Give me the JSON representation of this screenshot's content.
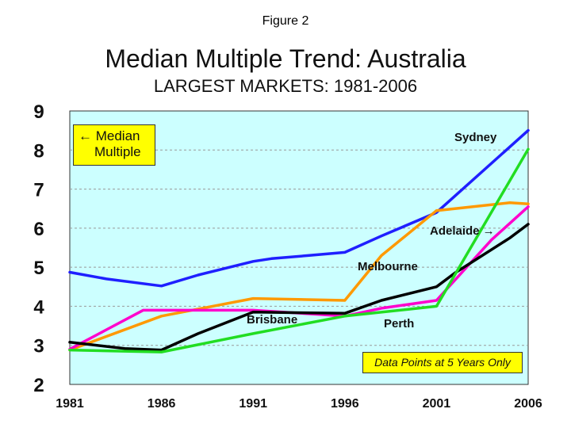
{
  "figure_caption": "Figure 2",
  "chart_data": {
    "type": "line",
    "title": "Median Multiple Trend: Australia",
    "subtitle": "LARGEST MARKETS: 1981-2006",
    "x": [
      1981,
      1986,
      1991,
      1996,
      2001,
      2006
    ],
    "x_ticks": [
      "1981",
      "1986",
      "1991",
      "1996",
      "2001",
      "2006"
    ],
    "y_ticks": [
      "2",
      "3",
      "4",
      "5",
      "6",
      "7",
      "8",
      "9"
    ],
    "xlim": [
      1981,
      2006
    ],
    "ylim": [
      2,
      9
    ],
    "grid": true,
    "plot_background": "#ccffff",
    "legend_text": [
      "← Median",
      "Multiple"
    ],
    "note": "Data Points at 5 Years Only",
    "series": [
      {
        "name": "Sydney",
        "label": "Sydney",
        "color": "#1f1fff",
        "points": [
          [
            1981,
            4.87
          ],
          [
            1983,
            4.7
          ],
          [
            1986,
            4.52
          ],
          [
            1988,
            4.8
          ],
          [
            1991,
            5.15
          ],
          [
            1992,
            5.22
          ],
          [
            1994,
            5.3
          ],
          [
            1996,
            5.38
          ],
          [
            1998,
            5.8
          ],
          [
            2000,
            6.2
          ],
          [
            2001,
            6.4
          ],
          [
            2006,
            8.5
          ]
        ]
      },
      {
        "name": "Melbourne",
        "label": "Melbourne",
        "color": "#ff9900",
        "points": [
          [
            1981,
            2.88
          ],
          [
            1986,
            3.75
          ],
          [
            1991,
            4.2
          ],
          [
            1996,
            4.15
          ],
          [
            1998,
            5.3
          ],
          [
            2001,
            6.45
          ],
          [
            2003,
            6.55
          ],
          [
            2005,
            6.65
          ],
          [
            2006,
            6.62
          ]
        ]
      },
      {
        "name": "Adelaide",
        "label": "Adelaide →",
        "color": "#ff00cc",
        "points": [
          [
            1981,
            2.9
          ],
          [
            1983,
            3.4
          ],
          [
            1985,
            3.9
          ],
          [
            1986,
            3.9
          ],
          [
            1991,
            3.9
          ],
          [
            1996,
            3.75
          ],
          [
            1998,
            3.95
          ],
          [
            2001,
            4.15
          ],
          [
            2004,
            5.7
          ],
          [
            2006,
            6.55
          ]
        ]
      },
      {
        "name": "Brisbane",
        "label": "Brisbane",
        "color": "#000000",
        "points": [
          [
            1981,
            3.08
          ],
          [
            1984,
            2.92
          ],
          [
            1986,
            2.88
          ],
          [
            1988,
            3.3
          ],
          [
            1991,
            3.85
          ],
          [
            1996,
            3.82
          ],
          [
            1998,
            4.15
          ],
          [
            2001,
            4.5
          ],
          [
            2002,
            4.85
          ],
          [
            2005,
            5.75
          ],
          [
            2006,
            6.1
          ]
        ]
      },
      {
        "name": "Perth",
        "label": "Perth",
        "color": "#22dd22",
        "points": [
          [
            1981,
            2.88
          ],
          [
            1986,
            2.83
          ],
          [
            1991,
            3.3
          ],
          [
            1996,
            3.75
          ],
          [
            2001,
            4.0
          ],
          [
            2006,
            8.02
          ]
        ]
      }
    ]
  }
}
